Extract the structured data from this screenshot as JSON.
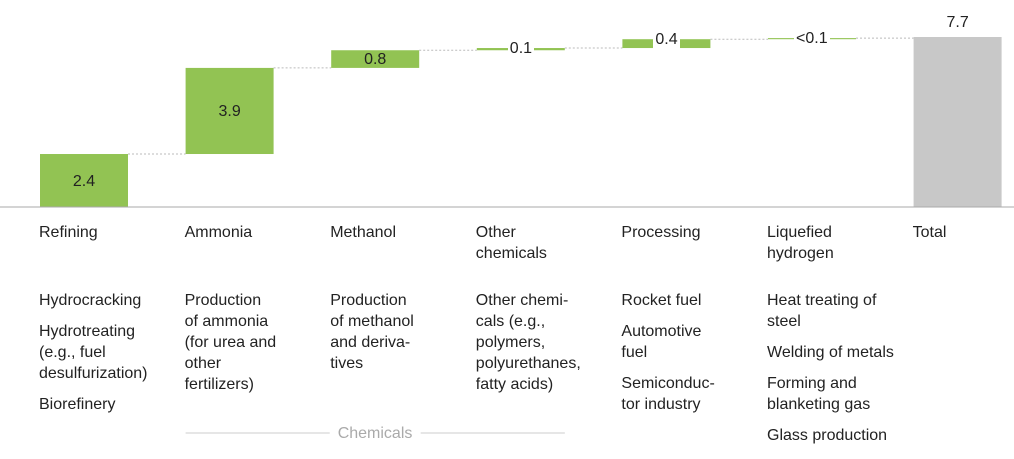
{
  "chart_data": {
    "type": "waterfall",
    "categories": [
      "Refining",
      "Ammonia",
      "Methanol",
      "Other chemicals",
      "Processing",
      "Liquefied hydrogen",
      "Total"
    ],
    "values": [
      2.4,
      3.9,
      0.8,
      0.1,
      0.4,
      0.05,
      7.7
    ],
    "value_labels": [
      "2.4",
      "3.9",
      "0.8",
      "0.1",
      "0.4",
      "<0.1",
      "7.7"
    ],
    "color": "#92c353",
    "total_color": "#c8c8c8",
    "descriptions": [
      [
        [
          "Hydrocracking"
        ],
        [
          "Hydrotreating",
          "(e.g., fuel",
          "desulfurization)"
        ],
        [
          "Biorefinery"
        ]
      ],
      [
        [
          "Production",
          "of ammonia",
          "(for urea and",
          "other",
          "fertilizers)"
        ]
      ],
      [
        [
          "Production",
          "of methanol",
          "and deriva-",
          "tives"
        ]
      ],
      [
        [
          "Other chemi-",
          "cals (e.g.,",
          "polymers,",
          "polyurethanes,",
          "fatty acids)"
        ]
      ],
      [
        [
          "Rocket fuel"
        ],
        [
          "Automotive",
          "fuel"
        ],
        [
          "Semiconduc-",
          "tor industry"
        ]
      ],
      [
        [
          "Heat treating of",
          "steel"
        ],
        [
          "Welding of metals"
        ],
        [
          "Forming and",
          "blanketing gas"
        ],
        [
          "Glass production"
        ]
      ],
      []
    ],
    "group_label": "Chemicals"
  }
}
